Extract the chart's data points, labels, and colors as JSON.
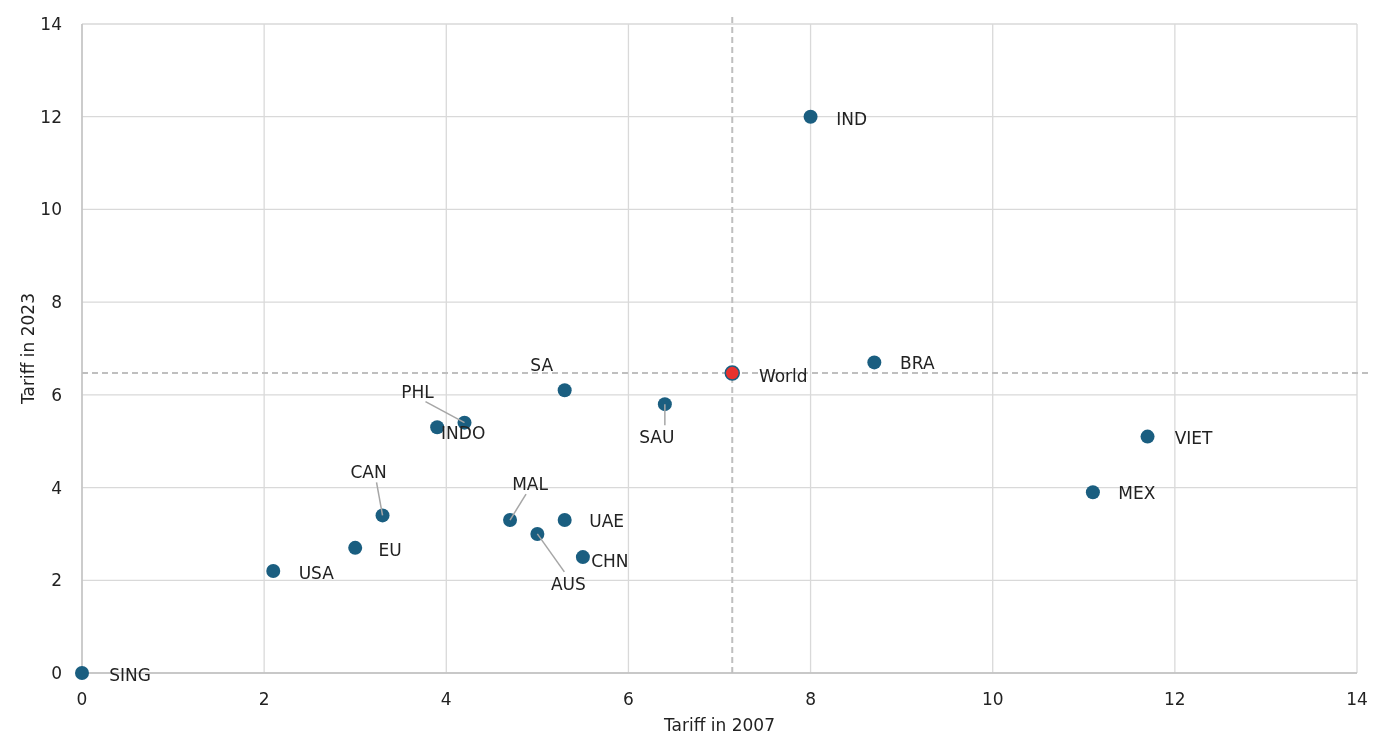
{
  "chart_data": {
    "type": "scatter",
    "xlabel": "Tariff in 2007",
    "ylabel": "Tariff in 2023",
    "xlim": [
      0,
      14
    ],
    "xticks": [
      0,
      2,
      4,
      6,
      8,
      10,
      12,
      14
    ],
    "ylim": [
      0,
      14
    ],
    "yticks": [
      0,
      2,
      4,
      6,
      8,
      10,
      12,
      14
    ],
    "grid": true,
    "marker": "circle",
    "series": [
      {
        "color": "#1a5e80",
        "x": [
          0,
          2.1,
          3.0,
          3.3,
          4.2,
          3.9,
          5.3,
          4.7,
          5.0,
          5.3,
          5.5,
          6.4,
          8.0,
          8.7,
          11.7,
          11.1
        ],
        "values": [
          0,
          2.2,
          2.7,
          3.4,
          5.4,
          5.3,
          6.1,
          3.3,
          3.0,
          3.3,
          2.5,
          5.8,
          12.0,
          6.7,
          5.1,
          3.9
        ]
      },
      {
        "color": "#e8322e",
        "x": [
          7.14
        ],
        "values": [
          6.47
        ]
      }
    ],
    "ref_lines": [
      {
        "axis": "x",
        "value": 7.14,
        "color": "#bfbfbf",
        "line_style": "dashed"
      },
      {
        "axis": "y",
        "value": 6.47,
        "color": "#bfbfbf",
        "line_style": "dashed"
      }
    ],
    "annotations": [
      {
        "text": "SING",
        "x": 0,
        "y": 0
      },
      {
        "text": "USA",
        "x": 2.1,
        "y": 2.2
      },
      {
        "text": "EU",
        "x": 3.0,
        "y": 2.7
      },
      {
        "text": "CAN",
        "x": 3.3,
        "y": 3.4
      },
      {
        "text": "PHL",
        "x": 4.2,
        "y": 5.4
      },
      {
        "text": "INDO",
        "x": 3.9,
        "y": 5.3
      },
      {
        "text": "SA",
        "x": 5.3,
        "y": 6.1
      },
      {
        "text": "MAL",
        "x": 4.7,
        "y": 3.3
      },
      {
        "text": "AUS",
        "x": 5.0,
        "y": 3.0
      },
      {
        "text": "UAE",
        "x": 5.3,
        "y": 3.3
      },
      {
        "text": "CHN",
        "x": 5.5,
        "y": 2.5
      },
      {
        "text": "SAU",
        "x": 6.4,
        "y": 5.8
      },
      {
        "text": "IND",
        "x": 8.0,
        "y": 12.0
      },
      {
        "text": "BRA",
        "x": 8.7,
        "y": 6.7
      },
      {
        "text": "VIET",
        "x": 11.7,
        "y": 5.1
      },
      {
        "text": "MEX",
        "x": 11.1,
        "y": 3.9
      },
      {
        "text": "World",
        "x": 7.14,
        "y": 6.47
      }
    ]
  }
}
